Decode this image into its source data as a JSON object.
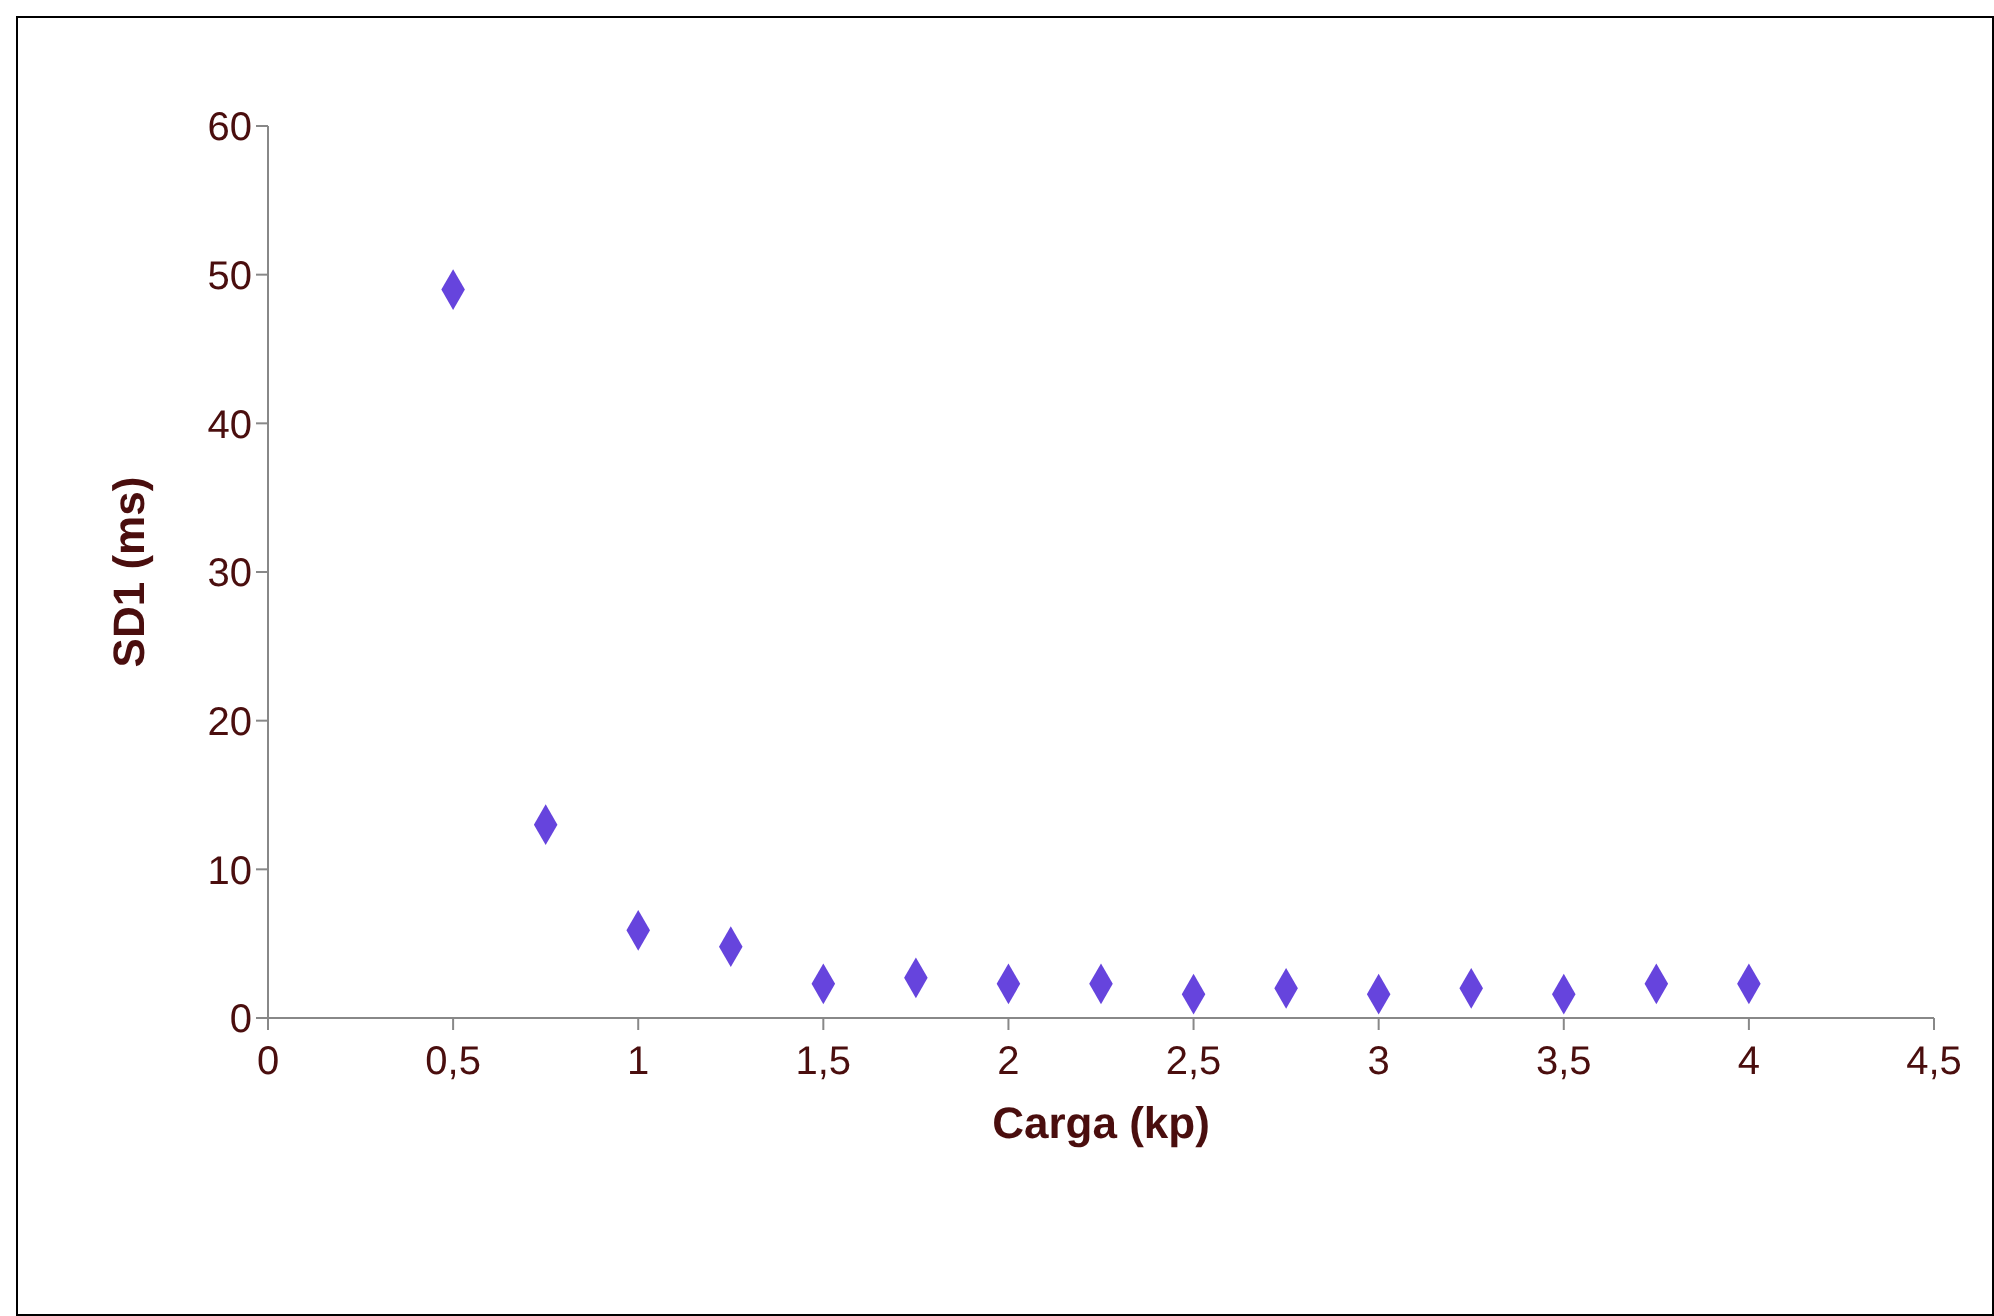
{
  "chart_data": {
    "type": "scatter",
    "xlabel": "Carga (kp)",
    "ylabel": "SD1 (ms)",
    "x": [
      0.5,
      0.75,
      1,
      1.25,
      1.5,
      1.75,
      2,
      2.25,
      2.5,
      2.75,
      3,
      3.25,
      3.5,
      3.75,
      4
    ],
    "values": [
      49,
      13,
      5.9,
      4.8,
      2.3,
      2.7,
      2.3,
      2.3,
      1.6,
      2,
      1.6,
      2,
      1.6,
      2.3,
      2.3
    ],
    "color": "#6644dd",
    "marker": "diamond",
    "xlim": [
      0,
      4.5
    ],
    "ylim": [
      0,
      60
    ],
    "xticks": [
      0,
      {
        "value": 0.5,
        "label": "0,5"
      },
      1,
      {
        "value": 1.5,
        "label": "1,5"
      },
      2,
      {
        "value": 2.5,
        "label": "2,5"
      },
      3,
      {
        "value": 3.5,
        "label": "3,5"
      },
      4,
      {
        "value": 4.5,
        "label": "4,5"
      }
    ],
    "yticks": [
      0,
      10,
      20,
      30,
      40,
      50,
      60
    ]
  }
}
